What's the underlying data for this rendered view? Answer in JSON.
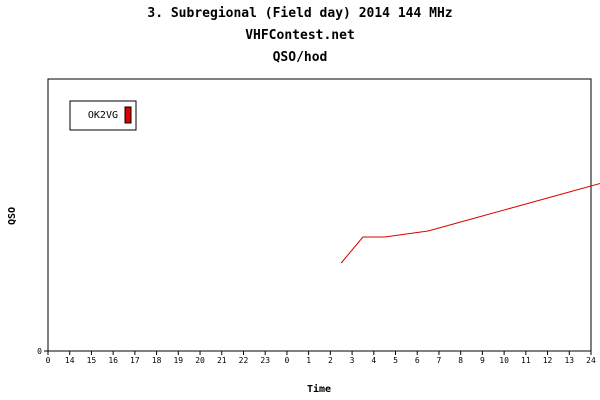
{
  "chart_data": {
    "type": "line",
    "title_lines": [
      "3. Subregional (Field day) 2014 144 MHz",
      "VHFContest.net",
      "QSO/hod"
    ],
    "xlabel": "Time",
    "ylabel": "QSO",
    "x_tick_labels": [
      "0",
      "14",
      "15",
      "16",
      "17",
      "18",
      "19",
      "20",
      "21",
      "22",
      "23",
      "0",
      "1",
      "2",
      "3",
      "4",
      "5",
      "6",
      "7",
      "8",
      "9",
      "10",
      "11",
      "12",
      "13",
      "24"
    ],
    "y_tick_labels": [
      "0"
    ],
    "legend_position": "top-left",
    "grid": false,
    "series": [
      {
        "name": "OK2VG",
        "color": "#dd0000",
        "x": [
          13.5,
          14.5,
          15.5,
          17.5,
          19.5,
          21.5,
          23.5,
          25.5,
          27.5,
          28.5,
          29.5,
          30.5,
          32.5
        ],
        "y": [
          88,
          114,
          114,
          120,
          132,
          144,
          156,
          168,
          180,
          180,
          202,
          208,
          260
        ]
      }
    ]
  }
}
